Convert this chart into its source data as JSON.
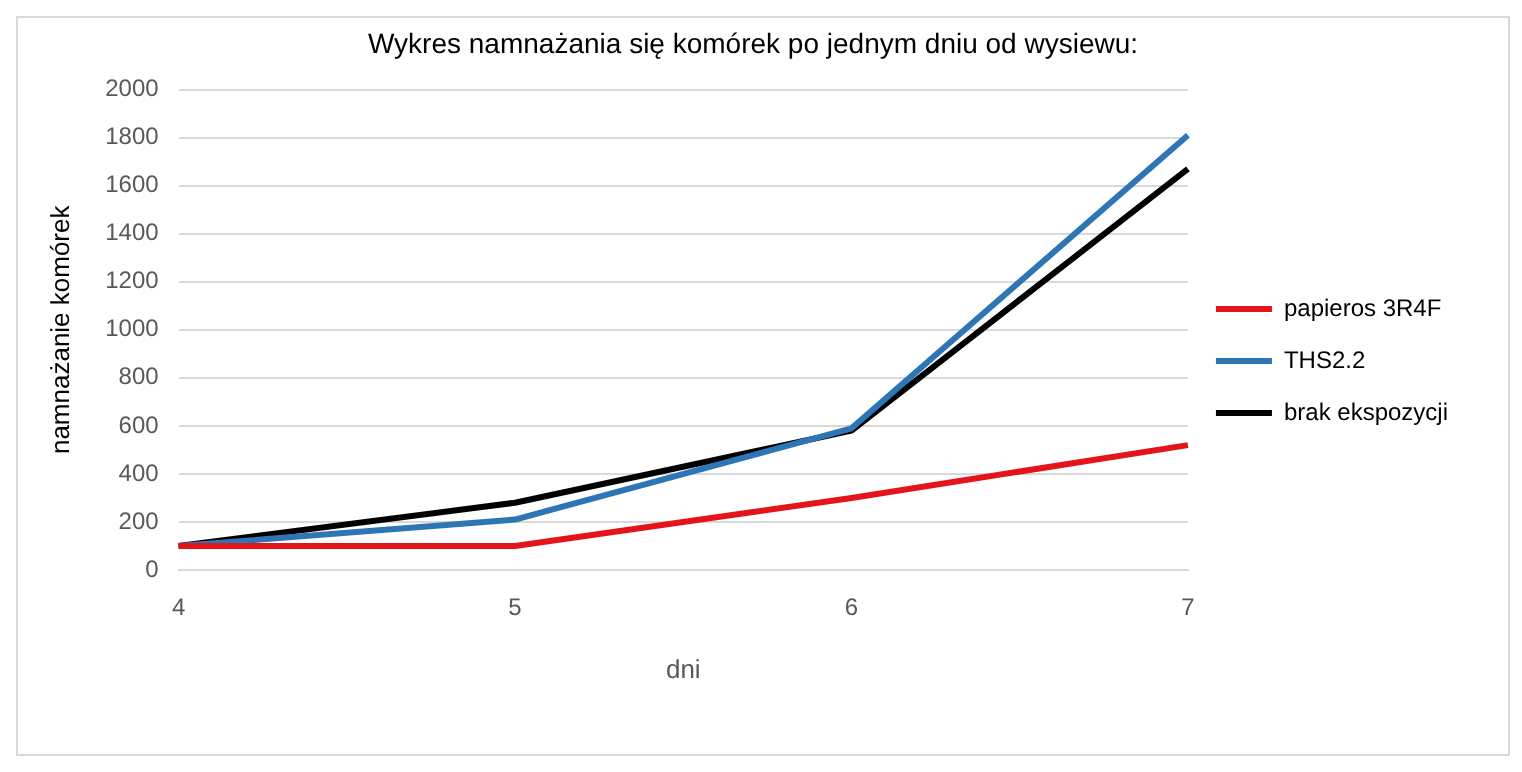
{
  "chart_data": {
    "type": "line",
    "title": "Wykres namnażania się komórek po jednym dniu od wysiewu:",
    "xlabel": "dni",
    "ylabel": "namnażanie komórek",
    "categories": [
      "4",
      "5",
      "6",
      "7"
    ],
    "series": [
      {
        "name": "papieros 3R4F",
        "color": "#e3151b",
        "values": [
          100,
          100,
          300,
          520
        ]
      },
      {
        "name": "THS2.2",
        "color": "#2e75b6",
        "values": [
          100,
          210,
          590,
          1810
        ]
      },
      {
        "name": "brak ekspozycji",
        "color": "#000000",
        "values": [
          100,
          280,
          580,
          1670
        ]
      }
    ],
    "ylim": [
      0,
      2000
    ],
    "yticks": [
      0,
      200,
      400,
      600,
      800,
      1000,
      1200,
      1400,
      1600,
      1800,
      2000
    ],
    "grid": "y",
    "legend": "right",
    "marker": "none",
    "line_style": "solid"
  }
}
